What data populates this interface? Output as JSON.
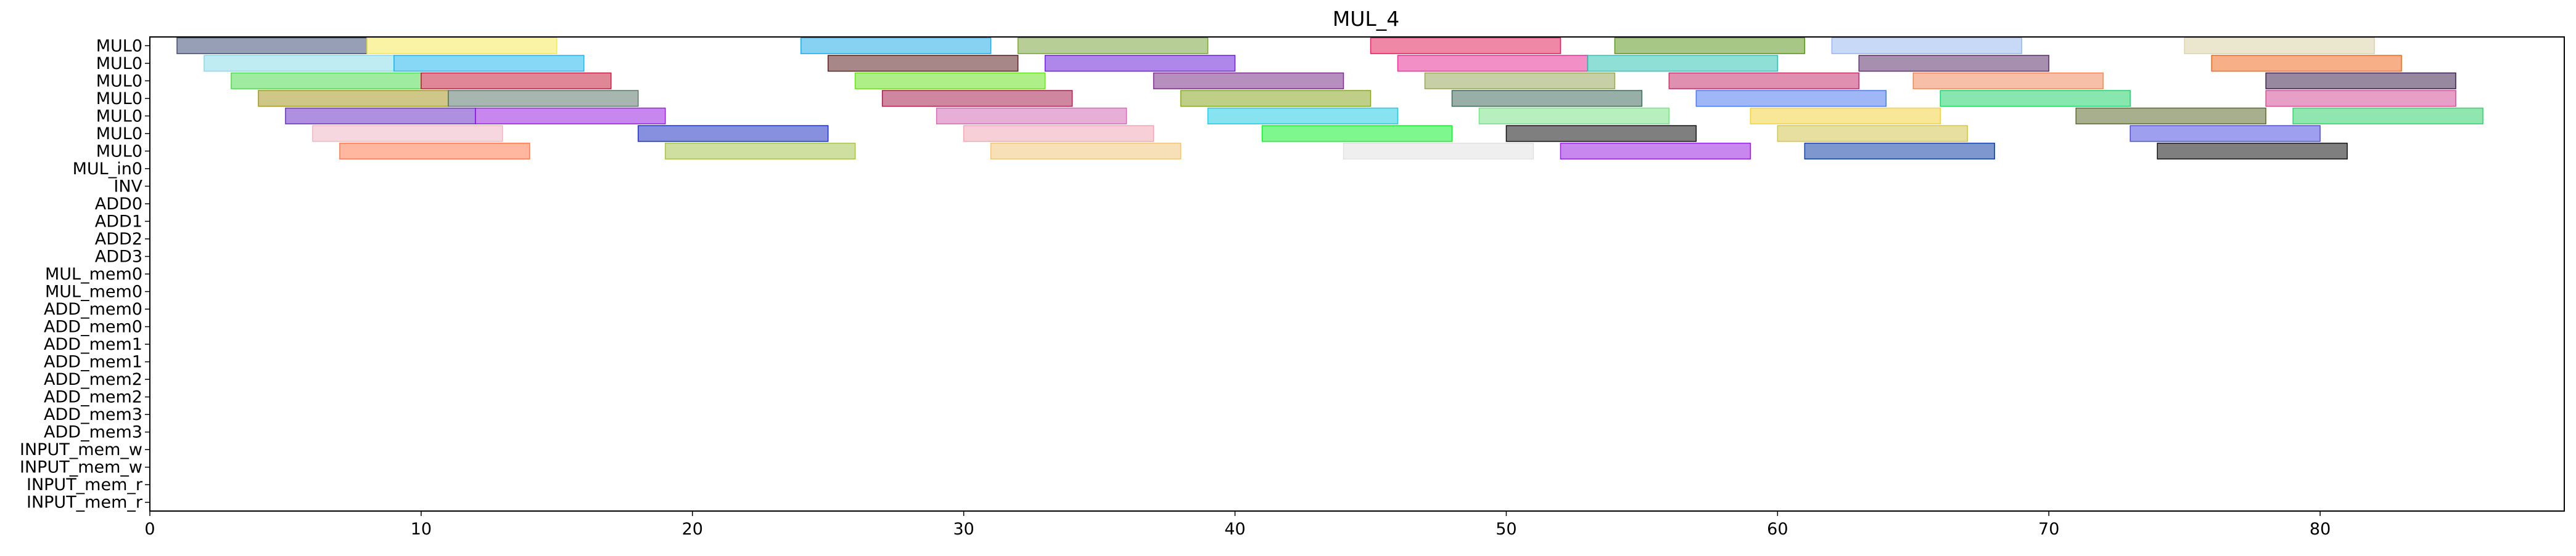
{
  "chart_data": {
    "type": "gantt",
    "title": "MUL_4",
    "xlim": [
      0,
      89
    ],
    "xticks": [
      0,
      10,
      20,
      30,
      40,
      50,
      60,
      70,
      80
    ],
    "rows": [
      "MUL0",
      "MUL0",
      "MUL0",
      "MUL0",
      "MUL0",
      "MUL0",
      "MUL0",
      "MUL_in0",
      "INV",
      "ADD0",
      "ADD1",
      "ADD2",
      "ADD3",
      "MUL_mem0",
      "MUL_mem0",
      "ADD_mem0",
      "ADD_mem0",
      "ADD_mem1",
      "ADD_mem1",
      "ADD_mem2",
      "ADD_mem2",
      "ADD_mem3",
      "ADD_mem3",
      "INPUT_mem_w",
      "INPUT_mem_w",
      "INPUT_mem_r",
      "INPUT_mem_r"
    ],
    "palette": [
      "#1f77b4",
      "#ff7f0e",
      "#2ca02c",
      "#d62728",
      "#9467bd",
      "#8c564b",
      "#e377c2",
      "#7f7f7f",
      "#bcbd22",
      "#17becf",
      "#00bfff",
      "#32cd32",
      "#ff1493",
      "#ffd700",
      "#8b0000",
      "#006400",
      "#00008b",
      "#da70d6",
      "#f4a460",
      "#7fffd4",
      "#4b0082",
      "#ff6347"
    ],
    "tasks": [
      {
        "row": 0,
        "start": 1,
        "end": 8,
        "color": "#2f3f6f"
      },
      {
        "row": 0,
        "start": 8,
        "end": 15,
        "color": "#f5e54a"
      },
      {
        "row": 0,
        "start": 24,
        "end": 31,
        "color": "#0fa3e8"
      },
      {
        "row": 0,
        "start": 32,
        "end": 39,
        "color": "#6f9e2f"
      },
      {
        "row": 0,
        "start": 45,
        "end": 52,
        "color": "#e0104f"
      },
      {
        "row": 0,
        "start": 54,
        "end": 61,
        "color": "#4f8f10"
      },
      {
        "row": 0,
        "start": 62,
        "end": 69,
        "color": "#8fb3ef"
      },
      {
        "row": 0,
        "start": 75,
        "end": 82,
        "color": "#d7d0a0"
      },
      {
        "row": 1,
        "start": 2,
        "end": 9,
        "color": "#7fd7e8"
      },
      {
        "row": 1,
        "start": 9,
        "end": 16,
        "color": "#10b0f0"
      },
      {
        "row": 1,
        "start": 25,
        "end": 32,
        "color": "#4f0f0f"
      },
      {
        "row": 1,
        "start": 33,
        "end": 40,
        "color": "#5f10d8"
      },
      {
        "row": 1,
        "start": 46,
        "end": 53,
        "color": "#e8208f"
      },
      {
        "row": 1,
        "start": 53,
        "end": 60,
        "color": "#20c0b0"
      },
      {
        "row": 1,
        "start": 63,
        "end": 70,
        "color": "#4f1f5f"
      },
      {
        "row": 1,
        "start": 76,
        "end": 83,
        "color": "#f06010"
      },
      {
        "row": 2,
        "start": 3,
        "end": 10,
        "color": "#3fd83f"
      },
      {
        "row": 2,
        "start": 10,
        "end": 17,
        "color": "#c0102f"
      },
      {
        "row": 2,
        "start": 26,
        "end": 33,
        "color": "#5fe010"
      },
      {
        "row": 2,
        "start": 37,
        "end": 44,
        "color": "#6f1f7f"
      },
      {
        "row": 2,
        "start": 47,
        "end": 54,
        "color": "#8fa04f"
      },
      {
        "row": 2,
        "start": 56,
        "end": 63,
        "color": "#c0205f"
      },
      {
        "row": 2,
        "start": 65,
        "end": 72,
        "color": "#f08050"
      },
      {
        "row": 2,
        "start": 78,
        "end": 85,
        "color": "#2f0f3f"
      },
      {
        "row": 3,
        "start": 4,
        "end": 11,
        "color": "#9f8f10"
      },
      {
        "row": 3,
        "start": 11,
        "end": 18,
        "color": "#4f6f5f"
      },
      {
        "row": 3,
        "start": 27,
        "end": 34,
        "color": "#9f103f"
      },
      {
        "row": 3,
        "start": 38,
        "end": 45,
        "color": "#80a010"
      },
      {
        "row": 3,
        "start": 48,
        "end": 55,
        "color": "#2f5f4f"
      },
      {
        "row": 3,
        "start": 57,
        "end": 64,
        "color": "#3f6fef"
      },
      {
        "row": 3,
        "start": 66,
        "end": 73,
        "color": "#10d060"
      },
      {
        "row": 3,
        "start": 78,
        "end": 85,
        "color": "#d0408f"
      },
      {
        "row": 4,
        "start": 5,
        "end": 12,
        "color": "#5f20c0"
      },
      {
        "row": 4,
        "start": 12,
        "end": 19,
        "color": "#8f10df"
      },
      {
        "row": 4,
        "start": 29,
        "end": 36,
        "color": "#d060af"
      },
      {
        "row": 4,
        "start": 39,
        "end": 46,
        "color": "#10c8e0"
      },
      {
        "row": 4,
        "start": 49,
        "end": 56,
        "color": "#6fdf7f"
      },
      {
        "row": 4,
        "start": 59,
        "end": 66,
        "color": "#efd030"
      },
      {
        "row": 4,
        "start": 71,
        "end": 78,
        "color": "#4f5f1f"
      },
      {
        "row": 4,
        "start": 79,
        "end": 86,
        "color": "#20d060"
      },
      {
        "row": 5,
        "start": 6,
        "end": 13,
        "color": "#f0b0c0"
      },
      {
        "row": 5,
        "start": 18,
        "end": 25,
        "color": "#1020c0"
      },
      {
        "row": 5,
        "start": 30,
        "end": 37,
        "color": "#f0a0b0"
      },
      {
        "row": 5,
        "start": 41,
        "end": 48,
        "color": "#00f020"
      },
      {
        "row": 5,
        "start": 50,
        "end": 57,
        "color": "#000000"
      },
      {
        "row": 5,
        "start": 60,
        "end": 67,
        "color": "#d0c040"
      },
      {
        "row": 5,
        "start": 73,
        "end": 80,
        "color": "#4040df"
      },
      {
        "row": 6,
        "start": 7,
        "end": 14,
        "color": "#ff7040"
      },
      {
        "row": 6,
        "start": 19,
        "end": 26,
        "color": "#a0c040"
      },
      {
        "row": 6,
        "start": 31,
        "end": 38,
        "color": "#f0c070"
      },
      {
        "row": 6,
        "start": 44,
        "end": 51,
        "color": "#e0e0e0"
      },
      {
        "row": 6,
        "start": 52,
        "end": 59,
        "color": "#8f10df"
      },
      {
        "row": 6,
        "start": 61,
        "end": 68,
        "color": "#0030a0"
      },
      {
        "row": 6,
        "start": 74,
        "end": 81,
        "color": "#000000"
      }
    ]
  }
}
